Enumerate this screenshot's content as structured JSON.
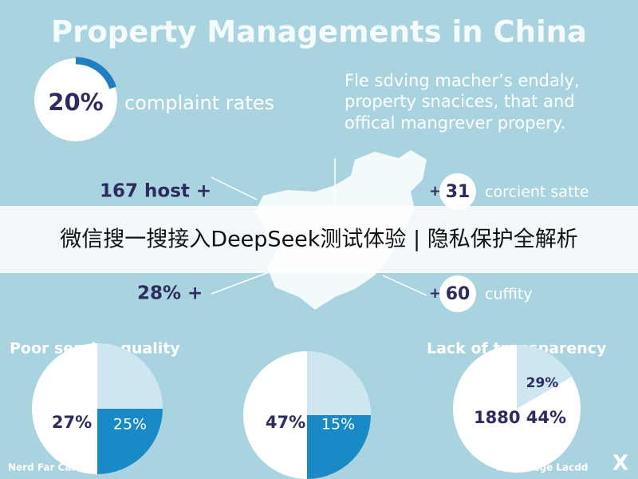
{
  "header": {
    "title": "Property Managements in China"
  },
  "intro": {
    "stat": "20%",
    "label": "complaint rates"
  },
  "description": [
    "Fle sdving macher’s endaly,",
    "property snacices, that and",
    "offical mangrever propery."
  ],
  "left_stats": [
    "167 host +",
    "28% +"
  ],
  "right_stats": [
    {
      "prefix": "+",
      "number": "31",
      "label": "corcient satte"
    },
    {
      "prefix": "+",
      "number": "60",
      "label": "cuffity"
    }
  ],
  "banner": "微信搜一搜接入DeepSeek测试体验 | 隐私保护全解析",
  "sections": [
    "Poor service quality",
    "Lack of transparency"
  ],
  "pies": [
    {
      "labels": [
        "27%",
        "25%"
      ]
    },
    {
      "labels": [
        "47%",
        "15%"
      ]
    },
    {
      "labels": [
        "29%",
        "1880 44%"
      ]
    }
  ],
  "footer": {
    "left": "Nerd Far Carity",
    "right": "Flst Ceege Lacdd",
    "icon": "X"
  }
}
